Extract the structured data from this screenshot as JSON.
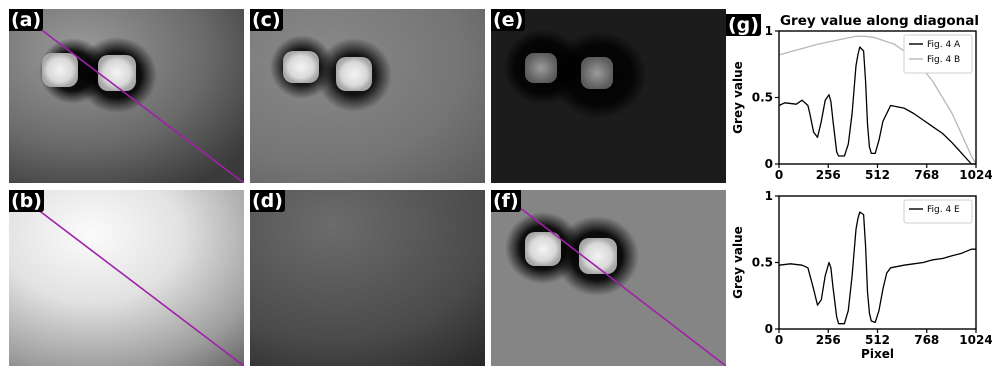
{
  "panels": {
    "a": {
      "label": "(a)"
    },
    "b": {
      "label": "(b)"
    },
    "c": {
      "label": "(c)"
    },
    "d": {
      "label": "(d)"
    },
    "e": {
      "label": "(e)"
    },
    "f": {
      "label": "(f)"
    },
    "g": {
      "label": "(g)"
    }
  },
  "colors": {
    "diagonal_line": "#a020a8",
    "trace_dark": "#000000",
    "trace_light": "#b8b8b8"
  },
  "chart_data": [
    {
      "type": "line",
      "title": "Grey value along diagonal",
      "xlabel": "",
      "ylabel": "Grey value",
      "xlim": [
        0,
        1024
      ],
      "ylim": [
        0,
        1
      ],
      "xticks": [
        "0",
        "256",
        "512",
        "768",
        "1024"
      ],
      "yticks": [
        "0",
        "0.5",
        "1"
      ],
      "legend": "top-right",
      "series": [
        {
          "name": "Fig. 4 A",
          "color": "#000000",
          "x": [
            0,
            30,
            90,
            120,
            150,
            160,
            180,
            200,
            220,
            240,
            260,
            270,
            280,
            300,
            310,
            340,
            360,
            380,
            400,
            410,
            420,
            440,
            450,
            460,
            470,
            480,
            500,
            520,
            540,
            580,
            650,
            700,
            750,
            800,
            850,
            900,
            950,
            1000,
            1024
          ],
          "y": [
            0.44,
            0.46,
            0.45,
            0.48,
            0.44,
            0.38,
            0.24,
            0.2,
            0.32,
            0.48,
            0.52,
            0.47,
            0.33,
            0.09,
            0.06,
            0.06,
            0.15,
            0.38,
            0.74,
            0.82,
            0.88,
            0.85,
            0.62,
            0.3,
            0.13,
            0.08,
            0.08,
            0.18,
            0.32,
            0.44,
            0.42,
            0.38,
            0.33,
            0.28,
            0.23,
            0.16,
            0.08,
            0.0,
            0.0
          ]
        },
        {
          "name": "Fig. 4 B",
          "color": "#b8b8b8",
          "x": [
            0,
            100,
            200,
            300,
            400,
            450,
            500,
            600,
            700,
            800,
            850,
            900,
            950,
            1000,
            1024
          ],
          "y": [
            0.82,
            0.86,
            0.9,
            0.93,
            0.96,
            0.96,
            0.95,
            0.9,
            0.8,
            0.62,
            0.5,
            0.38,
            0.22,
            0.06,
            0.0
          ]
        }
      ]
    },
    {
      "type": "line",
      "title": "",
      "xlabel": "Pixel",
      "ylabel": "Grey value",
      "xlim": [
        0,
        1024
      ],
      "ylim": [
        0,
        1
      ],
      "xticks": [
        "0",
        "256",
        "512",
        "768",
        "1024"
      ],
      "yticks": [
        "0",
        "0.5",
        "1"
      ],
      "legend": "top-right",
      "series": [
        {
          "name": "Fig. 4 E",
          "color": "#000000",
          "x": [
            0,
            60,
            120,
            150,
            180,
            200,
            220,
            240,
            260,
            270,
            280,
            300,
            310,
            340,
            360,
            380,
            400,
            410,
            420,
            440,
            450,
            460,
            470,
            480,
            500,
            520,
            540,
            560,
            580,
            650,
            700,
            750,
            800,
            850,
            900,
            950,
            1000,
            1024
          ],
          "y": [
            0.48,
            0.49,
            0.48,
            0.46,
            0.3,
            0.18,
            0.22,
            0.4,
            0.5,
            0.46,
            0.32,
            0.09,
            0.04,
            0.04,
            0.14,
            0.4,
            0.75,
            0.83,
            0.88,
            0.86,
            0.62,
            0.28,
            0.12,
            0.06,
            0.05,
            0.14,
            0.3,
            0.42,
            0.46,
            0.48,
            0.49,
            0.5,
            0.52,
            0.53,
            0.55,
            0.57,
            0.6,
            0.6
          ]
        }
      ]
    }
  ]
}
